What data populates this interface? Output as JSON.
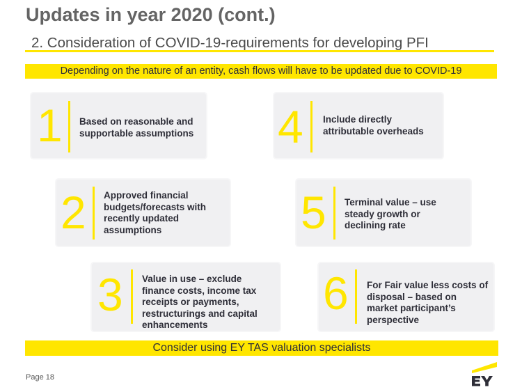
{
  "slide": {
    "title": "Updates in year 2020 (cont.)",
    "subtitle": "2. Consideration of COVID-19-requirements for developing PFI",
    "banner": "Depending on the nature of an entity, cash flows will have to be updated due to COVID-19",
    "footer_banner": "Consider using EY TAS valuation specialists",
    "page_label": "Page 18"
  },
  "cards": [
    {
      "number": "1",
      "text": "Based on reasonable and supportable assumptions"
    },
    {
      "number": "2",
      "text": "Approved financial budgets/forecasts with recently updated assumptions"
    },
    {
      "number": "3",
      "text": "Value in use  – exclude finance costs, income tax receipts or payments, restructurings and capital enhancements"
    },
    {
      "number": "4",
      "text": "Include directly attributable overheads"
    },
    {
      "number": "5",
      "text": "Terminal value – use steady growth or declining rate"
    },
    {
      "number": "6",
      "text": "For Fair value less costs of disposal  – based on market participant’s perspective"
    }
  ],
  "logo": {
    "text": "EY",
    "icon": "ey-logo-icon"
  },
  "colors": {
    "accent": "#ffe600",
    "card_bg": "#f0f0f2",
    "text_dark": "#2e2e38",
    "title_gray": "#646464"
  }
}
